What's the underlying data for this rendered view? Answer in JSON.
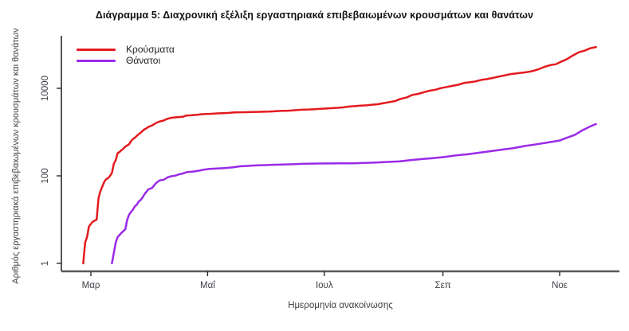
{
  "chart_data": {
    "type": "line",
    "title": "Διάγραμμα 5: Διαχρονική εξέλιξη εργαστηριακά επιβεβαιωμένων κρουσμάτων και θανάτων",
    "xlabel": "Ημερομηνία ανακοίνωσης",
    "ylabel": "Αριθμός εργαστηριακά επιβεβαιωμένων κρουσμάτων και θανάτων",
    "y_scale": "log10",
    "grid": false,
    "legend_position": "top-left",
    "ylim": [
      1,
      140000
    ],
    "y_ticks": [
      1,
      100,
      10000
    ],
    "x_ticks": [
      {
        "date": "2020-03-01",
        "label": "Μαρ"
      },
      {
        "date": "2020-05-01",
        "label": "Μαΐ"
      },
      {
        "date": "2020-07-01",
        "label": "Ιουλ"
      },
      {
        "date": "2020-09-01",
        "label": "Σεπ"
      },
      {
        "date": "2020-11-01",
        "label": "Νοε"
      }
    ],
    "series": [
      {
        "id": "cases",
        "name": "Κρούσματα",
        "color": "#e41a1f",
        "points": [
          [
            "2020-02-26",
            1
          ],
          [
            "2020-02-27",
            3
          ],
          [
            "2020-02-28",
            4
          ],
          [
            "2020-02-29",
            7
          ],
          [
            "2020-03-02",
            9
          ],
          [
            "2020-03-04",
            10
          ],
          [
            "2020-03-05",
            31
          ],
          [
            "2020-03-06",
            45
          ],
          [
            "2020-03-08",
            73
          ],
          [
            "2020-03-09",
            84
          ],
          [
            "2020-03-10",
            89
          ],
          [
            "2020-03-11",
            99
          ],
          [
            "2020-03-12",
            117
          ],
          [
            "2020-03-13",
            190
          ],
          [
            "2020-03-14",
            228
          ],
          [
            "2020-03-15",
            331
          ],
          [
            "2020-03-16",
            352
          ],
          [
            "2020-03-17",
            387
          ],
          [
            "2020-03-18",
            418
          ],
          [
            "2020-03-19",
            464
          ],
          [
            "2020-03-20",
            495
          ],
          [
            "2020-03-21",
            530
          ],
          [
            "2020-03-22",
            624
          ],
          [
            "2020-03-23",
            695
          ],
          [
            "2020-03-24",
            743
          ],
          [
            "2020-03-25",
            821
          ],
          [
            "2020-03-26",
            892
          ],
          [
            "2020-03-27",
            966
          ],
          [
            "2020-03-28",
            1061
          ],
          [
            "2020-03-29",
            1156
          ],
          [
            "2020-03-30",
            1212
          ],
          [
            "2020-03-31",
            1314
          ],
          [
            "2020-04-02",
            1415
          ],
          [
            "2020-04-04",
            1613
          ],
          [
            "2020-04-06",
            1755
          ],
          [
            "2020-04-08",
            1832
          ],
          [
            "2020-04-10",
            2011
          ],
          [
            "2020-04-12",
            2114
          ],
          [
            "2020-04-14",
            2170
          ],
          [
            "2020-04-16",
            2207
          ],
          [
            "2020-04-18",
            2235
          ],
          [
            "2020-04-20",
            2401
          ],
          [
            "2020-04-22",
            2408
          ],
          [
            "2020-04-24",
            2463
          ],
          [
            "2020-04-26",
            2506
          ],
          [
            "2020-04-28",
            2566
          ],
          [
            "2020-04-30",
            2591
          ],
          [
            "2020-05-03",
            2620
          ],
          [
            "2020-05-06",
            2678
          ],
          [
            "2020-05-09",
            2710
          ],
          [
            "2020-05-12",
            2744
          ],
          [
            "2020-05-15",
            2810
          ],
          [
            "2020-05-18",
            2834
          ],
          [
            "2020-05-21",
            2853
          ],
          [
            "2020-05-24",
            2876
          ],
          [
            "2020-05-27",
            2892
          ],
          [
            "2020-05-30",
            2915
          ],
          [
            "2020-06-02",
            2937
          ],
          [
            "2020-06-05",
            2980
          ],
          [
            "2020-06-08",
            3049
          ],
          [
            "2020-06-11",
            3067
          ],
          [
            "2020-06-14",
            3112
          ],
          [
            "2020-06-17",
            3203
          ],
          [
            "2020-06-20",
            3256
          ],
          [
            "2020-06-23",
            3287
          ],
          [
            "2020-06-26",
            3343
          ],
          [
            "2020-06-29",
            3390
          ],
          [
            "2020-07-02",
            3459
          ],
          [
            "2020-07-05",
            3519
          ],
          [
            "2020-07-08",
            3589
          ],
          [
            "2020-07-11",
            3672
          ],
          [
            "2020-07-14",
            3826
          ],
          [
            "2020-07-17",
            3910
          ],
          [
            "2020-07-20",
            4007
          ],
          [
            "2020-07-23",
            4077
          ],
          [
            "2020-07-26",
            4227
          ],
          [
            "2020-07-29",
            4336
          ],
          [
            "2020-08-01",
            4587
          ],
          [
            "2020-08-04",
            4855
          ],
          [
            "2020-08-07",
            5123
          ],
          [
            "2020-08-10",
            5749
          ],
          [
            "2020-08-13",
            6177
          ],
          [
            "2020-08-16",
            7075
          ],
          [
            "2020-08-19",
            7472
          ],
          [
            "2020-08-22",
            8138
          ],
          [
            "2020-08-25",
            8819
          ],
          [
            "2020-08-28",
            9280
          ],
          [
            "2020-08-31",
            10134
          ],
          [
            "2020-09-03",
            10757
          ],
          [
            "2020-09-06",
            11386
          ],
          [
            "2020-09-09",
            12080
          ],
          [
            "2020-09-12",
            13240
          ],
          [
            "2020-09-15",
            13730
          ],
          [
            "2020-09-18",
            14400
          ],
          [
            "2020-09-21",
            15595
          ],
          [
            "2020-09-24",
            16286
          ],
          [
            "2020-09-27",
            17228
          ],
          [
            "2020-09-30",
            18475
          ],
          [
            "2020-10-03",
            19613
          ],
          [
            "2020-10-06",
            20947
          ],
          [
            "2020-10-09",
            21772
          ],
          [
            "2020-10-12",
            22652
          ],
          [
            "2020-10-15",
            23495
          ],
          [
            "2020-10-18",
            24932
          ],
          [
            "2020-10-21",
            27334
          ],
          [
            "2020-10-24",
            30782
          ],
          [
            "2020-10-27",
            33752
          ],
          [
            "2020-10-30",
            35510
          ],
          [
            "2020-11-02",
            40929
          ],
          [
            "2020-11-05",
            46892
          ],
          [
            "2020-11-08",
            56698
          ],
          [
            "2020-11-11",
            66637
          ],
          [
            "2020-11-14",
            72510
          ],
          [
            "2020-11-17",
            82034
          ],
          [
            "2020-11-20",
            87812
          ]
        ]
      },
      {
        "id": "deaths",
        "name": "Θάνατοι",
        "color": "#9a2ae8",
        "points": [
          [
            "2020-03-12",
            1
          ],
          [
            "2020-03-14",
            3
          ],
          [
            "2020-03-15",
            4
          ],
          [
            "2020-03-17",
            5
          ],
          [
            "2020-03-19",
            6
          ],
          [
            "2020-03-20",
            10
          ],
          [
            "2020-03-21",
            13
          ],
          [
            "2020-03-22",
            15
          ],
          [
            "2020-03-23",
            17
          ],
          [
            "2020-03-24",
            20
          ],
          [
            "2020-03-25",
            22
          ],
          [
            "2020-03-26",
            26
          ],
          [
            "2020-03-27",
            28
          ],
          [
            "2020-03-28",
            32
          ],
          [
            "2020-03-29",
            38
          ],
          [
            "2020-03-30",
            43
          ],
          [
            "2020-03-31",
            49
          ],
          [
            "2020-04-02",
            53
          ],
          [
            "2020-04-04",
            68
          ],
          [
            "2020-04-06",
            79
          ],
          [
            "2020-04-08",
            81
          ],
          [
            "2020-04-10",
            92
          ],
          [
            "2020-04-12",
            98
          ],
          [
            "2020-04-14",
            101
          ],
          [
            "2020-04-16",
            108
          ],
          [
            "2020-04-18",
            113
          ],
          [
            "2020-04-20",
            121
          ],
          [
            "2020-04-23",
            125
          ],
          [
            "2020-04-26",
            130
          ],
          [
            "2020-04-29",
            138
          ],
          [
            "2020-05-02",
            144
          ],
          [
            "2020-05-06",
            147
          ],
          [
            "2020-05-10",
            151
          ],
          [
            "2020-05-14",
            156
          ],
          [
            "2020-05-18",
            165
          ],
          [
            "2020-05-22",
            169
          ],
          [
            "2020-05-26",
            173
          ],
          [
            "2020-05-30",
            175
          ],
          [
            "2020-06-04",
            179
          ],
          [
            "2020-06-10",
            182
          ],
          [
            "2020-06-16",
            186
          ],
          [
            "2020-06-22",
            190
          ],
          [
            "2020-06-28",
            191
          ],
          [
            "2020-07-04",
            192
          ],
          [
            "2020-07-10",
            193
          ],
          [
            "2020-07-16",
            194
          ],
          [
            "2020-07-22",
            198
          ],
          [
            "2020-07-28",
            202
          ],
          [
            "2020-08-03",
            208
          ],
          [
            "2020-08-09",
            213
          ],
          [
            "2020-08-15",
            228
          ],
          [
            "2020-08-21",
            242
          ],
          [
            "2020-08-27",
            254
          ],
          [
            "2020-09-02",
            271
          ],
          [
            "2020-09-08",
            293
          ],
          [
            "2020-09-14",
            311
          ],
          [
            "2020-09-20",
            338
          ],
          [
            "2020-09-26",
            366
          ],
          [
            "2020-10-02",
            398
          ],
          [
            "2020-10-08",
            431
          ],
          [
            "2020-10-14",
            482
          ],
          [
            "2020-10-20",
            528
          ],
          [
            "2020-10-26",
            581
          ],
          [
            "2020-11-01",
            642
          ],
          [
            "2020-11-05",
            749
          ],
          [
            "2020-11-09",
            866
          ],
          [
            "2020-11-13",
            1106
          ],
          [
            "2020-11-17",
            1347
          ],
          [
            "2020-11-20",
            1527
          ]
        ]
      }
    ]
  }
}
